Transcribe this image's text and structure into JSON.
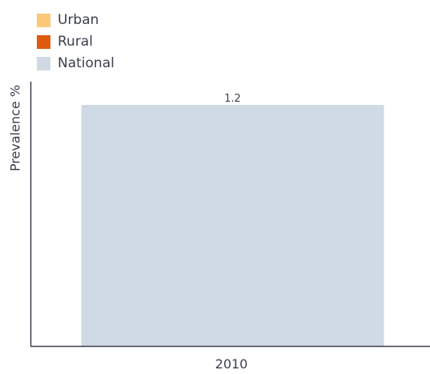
{
  "chart_data": {
    "type": "bar",
    "categories": [
      "2010"
    ],
    "series": [
      {
        "name": "Urban",
        "color": "#fdc878",
        "values": [
          null
        ]
      },
      {
        "name": "Rural",
        "color": "#e05a0e",
        "values": [
          null
        ]
      },
      {
        "name": "National",
        "color": "#d0dae5",
        "values": [
          1.2
        ]
      }
    ],
    "data_labels": [
      "1.2"
    ],
    "ylabel": "Prevalence %",
    "xlabel": "",
    "ylim": [
      0,
      1.2
    ],
    "grid": false,
    "legend_position": "top-left"
  }
}
